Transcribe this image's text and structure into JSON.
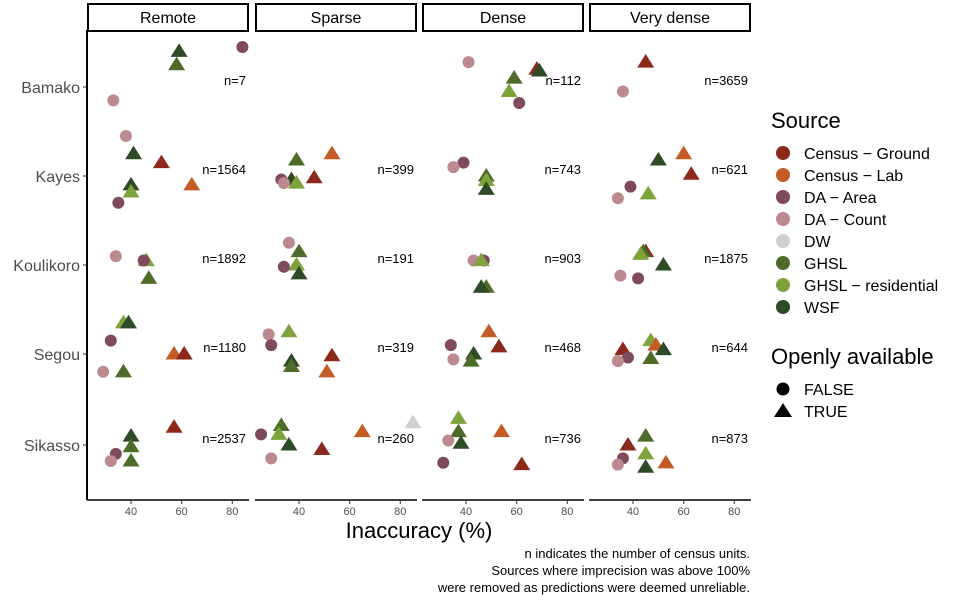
{
  "chart_data": {
    "type": "scatter",
    "facet_columns": [
      "Remote",
      "Sparse",
      "Dense",
      "Very dense"
    ],
    "rows": [
      "Bamako",
      "Kayes",
      "Koulikoro",
      "Segou",
      "Sikasso"
    ],
    "xlabel": "Inaccuracy (%)",
    "xticks": [
      40,
      60,
      80
    ],
    "xlim": [
      23,
      87
    ],
    "caption": [
      "n indicates the number of census units.",
      "Sources where imprecision was above 100%",
      "were removed as predictions were deemed unreliable."
    ],
    "legend": {
      "source_title": "Source",
      "sources": [
        {
          "name": "Census − Ground",
          "color": "#8B2A1C"
        },
        {
          "name": "Census − Lab",
          "color": "#C45C26"
        },
        {
          "name": "DA − Area",
          "color": "#7E4A5C"
        },
        {
          "name": "DA − Count",
          "color": "#BC8A8E"
        },
        {
          "name": "DW",
          "color": "#D0D0D0"
        },
        {
          "name": "GHSL",
          "color": "#4E6B2A"
        },
        {
          "name": "GHSL − residential",
          "color": "#7FA23C"
        },
        {
          "name": "WSF",
          "color": "#2F4A26"
        }
      ],
      "shape_title": "Openly available",
      "shapes": [
        {
          "name": "FALSE",
          "shape": "circle"
        },
        {
          "name": "TRUE",
          "shape": "triangle"
        }
      ]
    },
    "n_labels": {
      "Remote": {
        "Bamako": "n=7",
        "Kayes": "n=1564",
        "Koulikoro": "n=1892",
        "Segou": "n=1180",
        "Sikasso": "n=2537"
      },
      "Sparse": {
        "Kayes": "n=399",
        "Koulikoro": "n=191",
        "Segou": "n=319",
        "Sikasso": "n=260"
      },
      "Dense": {
        "Bamako": "n=112",
        "Kayes": "n=743",
        "Koulikoro": "n=903",
        "Segou": "n=468",
        "Sikasso": "n=736"
      },
      "Very dense": {
        "Bamako": "n=3659",
        "Kayes": "n=621",
        "Koulikoro": "n=1875",
        "Segou": "n=644",
        "Sikasso": "n=873"
      }
    },
    "points": {
      "Remote": {
        "Bamako": [
          {
            "source": "DA − Count",
            "x": 33,
            "j": 0.15
          },
          {
            "source": "GHSL",
            "x": 58,
            "j": -0.25
          },
          {
            "source": "WSF",
            "x": 59,
            "j": -0.4
          },
          {
            "source": "DA − Area",
            "x": 84,
            "j": -0.45
          }
        ],
        "Kayes": [
          {
            "source": "DA − Count",
            "x": 38,
            "j": -0.45
          },
          {
            "source": "WSF",
            "x": 41,
            "j": -0.25
          },
          {
            "source": "Census − Ground",
            "x": 52,
            "j": -0.15
          },
          {
            "source": "Census − Lab",
            "x": 64,
            "j": 0.1
          },
          {
            "source": "WSF",
            "x": 40,
            "j": 0.1
          },
          {
            "source": "GHSL − residential",
            "x": 40,
            "j": 0.18
          },
          {
            "source": "DA − Area",
            "x": 35,
            "j": 0.3
          }
        ],
        "Koulikoro": [
          {
            "source": "DA − Count",
            "x": 34,
            "j": -0.1
          },
          {
            "source": "GHSL − residential",
            "x": 46,
            "j": -0.05
          },
          {
            "source": "DA − Area",
            "x": 45,
            "j": -0.05
          },
          {
            "source": "GHSL",
            "x": 47,
            "j": 0.15
          }
        ],
        "Segou": [
          {
            "source": "GHSL − residential",
            "x": 37,
            "j": -0.35
          },
          {
            "source": "WSF",
            "x": 39,
            "j": -0.35
          },
          {
            "source": "DA − Area",
            "x": 32,
            "j": -0.15
          },
          {
            "source": "Census − Lab",
            "x": 57,
            "j": 0.0
          },
          {
            "source": "Census − Ground",
            "x": 61,
            "j": 0.0
          },
          {
            "source": "GHSL",
            "x": 37,
            "j": 0.2
          },
          {
            "source": "DA − Count",
            "x": 29,
            "j": 0.2
          }
        ],
        "Sikasso": [
          {
            "source": "Census − Ground",
            "x": 57,
            "j": -0.2
          },
          {
            "source": "WSF",
            "x": 40,
            "j": -0.1
          },
          {
            "source": "GHSL",
            "x": 40,
            "j": 0.02
          },
          {
            "source": "DA − Area",
            "x": 34,
            "j": 0.1
          },
          {
            "source": "DA − Count",
            "x": 32,
            "j": 0.18
          },
          {
            "source": "GHSL",
            "x": 40,
            "j": 0.18
          }
        ]
      },
      "Sparse": {
        "Kayes": [
          {
            "source": "GHSL",
            "x": 39,
            "j": -0.18
          },
          {
            "source": "Census − Lab",
            "x": 53,
            "j": -0.25
          },
          {
            "source": "Census − Ground",
            "x": 46,
            "j": 0.02
          },
          {
            "source": "DA − Area",
            "x": 33,
            "j": 0.04
          },
          {
            "source": "WSF",
            "x": 37,
            "j": 0.04
          },
          {
            "source": "DA − Count",
            "x": 34,
            "j": 0.08
          },
          {
            "source": "GHSL − residential",
            "x": 39,
            "j": 0.08
          }
        ],
        "Koulikoro": [
          {
            "source": "DA − Count",
            "x": 36,
            "j": -0.25
          },
          {
            "source": "GHSL",
            "x": 40,
            "j": -0.15
          },
          {
            "source": "GHSL − residential",
            "x": 39,
            "j": 0.0
          },
          {
            "source": "DA − Area",
            "x": 34,
            "j": 0.02
          },
          {
            "source": "WSF",
            "x": 40,
            "j": 0.1
          }
        ],
        "Segou": [
          {
            "source": "GHSL − residential",
            "x": 36,
            "j": -0.25
          },
          {
            "source": "DA − Count",
            "x": 28,
            "j": -0.22
          },
          {
            "source": "DA − Area",
            "x": 29,
            "j": -0.1
          },
          {
            "source": "Census − Ground",
            "x": 53,
            "j": 0.02
          },
          {
            "source": "WSF",
            "x": 37,
            "j": 0.08
          },
          {
            "source": "GHSL",
            "x": 37,
            "j": 0.14
          },
          {
            "source": "Census − Lab",
            "x": 51,
            "j": 0.2
          }
        ],
        "Sikasso": [
          {
            "source": "DW",
            "x": 85,
            "j": -0.25
          },
          {
            "source": "GHSL",
            "x": 33,
            "j": -0.22
          },
          {
            "source": "Census − Lab",
            "x": 65,
            "j": -0.15
          },
          {
            "source": "DA − Area",
            "x": 25,
            "j": -0.12
          },
          {
            "source": "GHSL − residential",
            "x": 32,
            "j": -0.12
          },
          {
            "source": "WSF",
            "x": 36,
            "j": 0.0
          },
          {
            "source": "Census − Ground",
            "x": 49,
            "j": 0.05
          },
          {
            "source": "DA − Count",
            "x": 29,
            "j": 0.15
          }
        ]
      },
      "Dense": {
        "Bamako": [
          {
            "source": "DA − Count",
            "x": 41,
            "j": -0.28
          },
          {
            "source": "Census − Ground",
            "x": 68,
            "j": -0.2
          },
          {
            "source": "WSF",
            "x": 69,
            "j": -0.18
          },
          {
            "source": "GHSL",
            "x": 59,
            "j": -0.1
          },
          {
            "source": "GHSL − residential",
            "x": 57,
            "j": 0.05
          },
          {
            "source": "DA − Area",
            "x": 61,
            "j": 0.18
          }
        ],
        "Kayes": [
          {
            "source": "DA − Area",
            "x": 39,
            "j": -0.15
          },
          {
            "source": "DA − Count",
            "x": 35,
            "j": -0.1
          },
          {
            "source": "GHSL",
            "x": 48,
            "j": 0.0
          },
          {
            "source": "GHSL − residential",
            "x": 48,
            "j": 0.05
          },
          {
            "source": "WSF",
            "x": 48,
            "j": 0.15
          }
        ],
        "Koulikoro": [
          {
            "source": "DA − Count",
            "x": 43,
            "j": -0.05
          },
          {
            "source": "DA − Area",
            "x": 47,
            "j": -0.05
          },
          {
            "source": "GHSL − residential",
            "x": 46,
            "j": -0.05
          },
          {
            "source": "GHSL",
            "x": 48,
            "j": 0.25
          },
          {
            "source": "WSF",
            "x": 46,
            "j": 0.25
          }
        ],
        "Segou": [
          {
            "source": "Census − Lab",
            "x": 49,
            "j": -0.25
          },
          {
            "source": "DA − Area",
            "x": 34,
            "j": -0.1
          },
          {
            "source": "Census − Ground",
            "x": 53,
            "j": -0.08
          },
          {
            "source": "WSF",
            "x": 43,
            "j": 0.0
          },
          {
            "source": "DA − Count",
            "x": 35,
            "j": 0.06
          },
          {
            "source": "GHSL",
            "x": 42,
            "j": 0.08
          }
        ],
        "Sikasso": [
          {
            "source": "GHSL − residential",
            "x": 37,
            "j": -0.3
          },
          {
            "source": "Census − Lab",
            "x": 54,
            "j": -0.15
          },
          {
            "source": "GHSL",
            "x": 37,
            "j": -0.15
          },
          {
            "source": "DA − Count",
            "x": 33,
            "j": -0.05
          },
          {
            "source": "WSF",
            "x": 38,
            "j": -0.02
          },
          {
            "source": "DA − Area",
            "x": 31,
            "j": 0.2
          },
          {
            "source": "Census − Ground",
            "x": 62,
            "j": 0.22
          }
        ]
      },
      "Very dense": {
        "Bamako": [
          {
            "source": "Census − Ground",
            "x": 45,
            "j": -0.28
          },
          {
            "source": "DA − Count",
            "x": 36,
            "j": 0.05
          }
        ],
        "Kayes": [
          {
            "source": "Census − Lab",
            "x": 60,
            "j": -0.25
          },
          {
            "source": "WSF",
            "x": 50,
            "j": -0.18
          },
          {
            "source": "Census − Ground",
            "x": 63,
            "j": -0.02
          },
          {
            "source": "DA − Area",
            "x": 39,
            "j": 0.12
          },
          {
            "source": "GHSL − residential",
            "x": 46,
            "j": 0.2
          },
          {
            "source": "DA − Count",
            "x": 34,
            "j": 0.25
          }
        ],
        "Koulikoro": [
          {
            "source": "Census − Ground",
            "x": 45,
            "j": -0.15
          },
          {
            "source": "GHSL",
            "x": 44,
            "j": -0.15
          },
          {
            "source": "GHSL − residential",
            "x": 43,
            "j": -0.12
          },
          {
            "source": "WSF",
            "x": 52,
            "j": 0.0
          },
          {
            "source": "DA − Count",
            "x": 35,
            "j": 0.12
          },
          {
            "source": "DA − Area",
            "x": 42,
            "j": 0.15
          }
        ],
        "Segou": [
          {
            "source": "GHSL − residential",
            "x": 47,
            "j": -0.15
          },
          {
            "source": "Census − Lab",
            "x": 49,
            "j": -0.1
          },
          {
            "source": "Census − Ground",
            "x": 36,
            "j": -0.05
          },
          {
            "source": "WSF",
            "x": 52,
            "j": -0.05
          },
          {
            "source": "DA − Area",
            "x": 38,
            "j": 0.04
          },
          {
            "source": "GHSL",
            "x": 47,
            "j": 0.05
          },
          {
            "source": "DA − Count",
            "x": 34,
            "j": 0.08
          }
        ],
        "Sikasso": [
          {
            "source": "GHSL",
            "x": 45,
            "j": -0.1
          },
          {
            "source": "Census − Ground",
            "x": 38,
            "j": 0.0
          },
          {
            "source": "GHSL − residential",
            "x": 45,
            "j": 0.1
          },
          {
            "source": "DA − Area",
            "x": 36,
            "j": 0.15
          },
          {
            "source": "Census − Lab",
            "x": 53,
            "j": 0.2
          },
          {
            "source": "DA − Count",
            "x": 34,
            "j": 0.22
          },
          {
            "source": "WSF",
            "x": 45,
            "j": 0.25
          }
        ]
      }
    }
  }
}
